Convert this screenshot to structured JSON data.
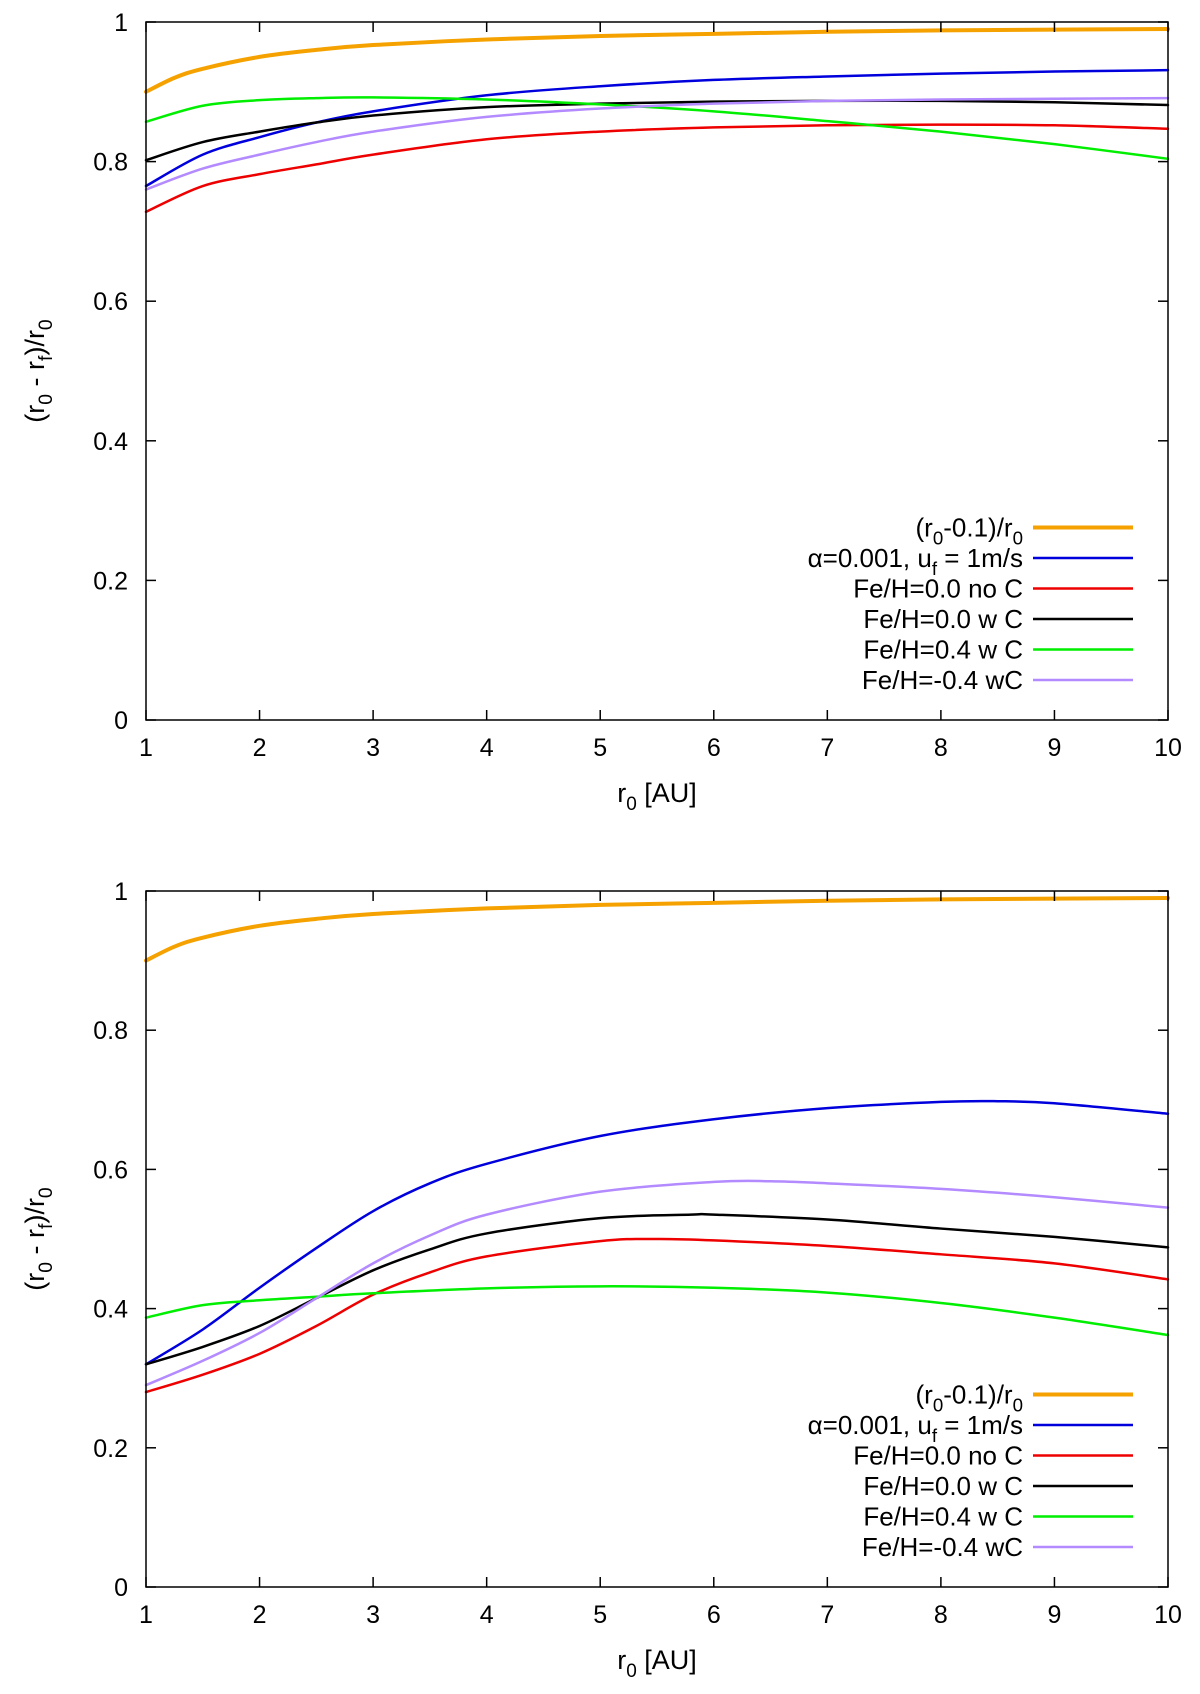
{
  "chart_data": [
    {
      "type": "line",
      "title": "",
      "xlabel": {
        "base": "r",
        "sub": "0",
        "rest": " [AU]"
      },
      "ylabel": {
        "parts": [
          {
            "t": "(r"
          },
          {
            "t": "0",
            "sub": true
          },
          {
            "t": " - r"
          },
          {
            "t": "f",
            "sub": true
          },
          {
            "t": ")/r"
          },
          {
            "t": "0",
            "sub": true
          }
        ]
      },
      "xlim": [
        1,
        10
      ],
      "ylim": [
        0,
        1
      ],
      "x_ticks": [
        "1",
        "2",
        "3",
        "4",
        "5",
        "6",
        "7",
        "8",
        "9",
        "10"
      ],
      "y_ticks": [
        "0",
        "0.2",
        "0.4",
        "0.6",
        "0.8",
        "1"
      ],
      "grid": false,
      "legend_position": "bottom-right",
      "series": [
        {
          "name": "(r0-0.1)/r0",
          "label_parts": [
            {
              "t": "(r"
            },
            {
              "t": "0",
              "sub": true
            },
            {
              "t": "-0.1)/r"
            },
            {
              "t": "0",
              "sub": true
            }
          ],
          "color": "#f5a200",
          "width": 4,
          "x": [
            1,
            1.25,
            1.5,
            2,
            2.5,
            3,
            4,
            5,
            6,
            7,
            8,
            9,
            10
          ],
          "y": [
            0.9,
            0.92,
            0.933,
            0.95,
            0.96,
            0.967,
            0.975,
            0.98,
            0.983,
            0.986,
            0.988,
            0.989,
            0.99
          ]
        },
        {
          "name": "α=0.001, uf = 1m/s",
          "label_parts": [
            {
              "t": "α=0.001, u"
            },
            {
              "t": "f",
              "sub": true
            },
            {
              "t": " = 1m/s"
            }
          ],
          "color": "#0000dd",
          "width": 2.5,
          "x": [
            1,
            1.5,
            2,
            2.5,
            3,
            4,
            5,
            6,
            7,
            8,
            9,
            10
          ],
          "y": [
            0.765,
            0.81,
            0.835,
            0.856,
            0.872,
            0.895,
            0.908,
            0.917,
            0.922,
            0.926,
            0.929,
            0.931
          ]
        },
        {
          "name": "Fe/H=0.0 no C",
          "label_parts": [
            {
              "t": "Fe/H=0.0 no C"
            }
          ],
          "color": "#ee0000",
          "width": 2.5,
          "x": [
            1,
            1.5,
            2,
            2.5,
            3,
            4,
            5,
            6,
            7,
            8,
            9,
            10
          ],
          "y": [
            0.728,
            0.765,
            0.782,
            0.796,
            0.81,
            0.832,
            0.843,
            0.849,
            0.852,
            0.853,
            0.852,
            0.847
          ]
        },
        {
          "name": "Fe/H=0.0 w C",
          "label_parts": [
            {
              "t": "Fe/H=0.0 w C"
            }
          ],
          "color": "#000000",
          "width": 2.5,
          "x": [
            1,
            1.5,
            2,
            2.5,
            3,
            4,
            5,
            6,
            7,
            8,
            9,
            10
          ],
          "y": [
            0.802,
            0.828,
            0.843,
            0.856,
            0.866,
            0.878,
            0.883,
            0.886,
            0.887,
            0.887,
            0.885,
            0.881
          ]
        },
        {
          "name": "Fe/H=0.4 w C",
          "label_parts": [
            {
              "t": "Fe/H=0.4 w C"
            }
          ],
          "color": "#00ee00",
          "width": 2.5,
          "x": [
            1,
            1.5,
            2,
            2.5,
            3,
            4,
            5,
            6,
            7,
            8,
            9,
            10
          ],
          "y": [
            0.857,
            0.88,
            0.888,
            0.891,
            0.892,
            0.889,
            0.882,
            0.872,
            0.858,
            0.843,
            0.825,
            0.804
          ]
        },
        {
          "name": "Fe/H=-0.4 wC",
          "label_parts": [
            {
              "t": "Fe/H=-0.4 wC"
            }
          ],
          "color": "#b38aff",
          "width": 2.5,
          "x": [
            1,
            1.5,
            2,
            2.5,
            3,
            4,
            5,
            6,
            7,
            8,
            9,
            10
          ],
          "y": [
            0.76,
            0.79,
            0.81,
            0.828,
            0.843,
            0.864,
            0.876,
            0.883,
            0.887,
            0.889,
            0.89,
            0.891
          ]
        }
      ]
    },
    {
      "type": "line",
      "title": "",
      "xlabel": {
        "base": "r",
        "sub": "0",
        "rest": " [AU]"
      },
      "ylabel": {
        "parts": [
          {
            "t": "(r"
          },
          {
            "t": "0",
            "sub": true
          },
          {
            "t": " - r"
          },
          {
            "t": "f",
            "sub": true
          },
          {
            "t": ")/r"
          },
          {
            "t": "0",
            "sub": true
          }
        ]
      },
      "xlim": [
        1,
        10
      ],
      "ylim": [
        0,
        1
      ],
      "x_ticks": [
        "1",
        "2",
        "3",
        "4",
        "5",
        "6",
        "7",
        "8",
        "9",
        "10"
      ],
      "y_ticks": [
        "0",
        "0.2",
        "0.4",
        "0.6",
        "0.8",
        "1"
      ],
      "grid": false,
      "legend_position": "bottom-right",
      "series": [
        {
          "name": "(r0-0.1)/r0",
          "label_parts": [
            {
              "t": "(r"
            },
            {
              "t": "0",
              "sub": true
            },
            {
              "t": "-0.1)/r"
            },
            {
              "t": "0",
              "sub": true
            }
          ],
          "color": "#f5a200",
          "width": 4,
          "x": [
            1,
            1.25,
            1.5,
            2,
            2.5,
            3,
            4,
            5,
            6,
            7,
            8,
            9,
            10
          ],
          "y": [
            0.9,
            0.92,
            0.933,
            0.95,
            0.96,
            0.967,
            0.975,
            0.98,
            0.983,
            0.986,
            0.988,
            0.989,
            0.99
          ]
        },
        {
          "name": "α=0.001, uf = 1m/s",
          "label_parts": [
            {
              "t": "α=0.001, u"
            },
            {
              "t": "f",
              "sub": true
            },
            {
              "t": " = 1m/s"
            }
          ],
          "color": "#0000dd",
          "width": 2.5,
          "x": [
            1,
            1.5,
            2,
            2.5,
            3,
            3.5,
            4,
            5,
            6,
            7,
            8,
            8.5,
            9,
            10
          ],
          "y": [
            0.32,
            0.37,
            0.43,
            0.487,
            0.54,
            0.58,
            0.608,
            0.648,
            0.672,
            0.688,
            0.697,
            0.698,
            0.695,
            0.68
          ]
        },
        {
          "name": "Fe/H=0.0 no C",
          "label_parts": [
            {
              "t": "Fe/H=0.0 no C"
            }
          ],
          "color": "#ee0000",
          "width": 2.5,
          "x": [
            1,
            1.5,
            2,
            2.5,
            3,
            3.5,
            4,
            5,
            5.5,
            6,
            7,
            8,
            9,
            10
          ],
          "y": [
            0.28,
            0.305,
            0.335,
            0.375,
            0.42,
            0.452,
            0.475,
            0.497,
            0.5,
            0.498,
            0.49,
            0.478,
            0.465,
            0.442
          ]
        },
        {
          "name": "Fe/H=0.0 w C",
          "label_parts": [
            {
              "t": "Fe/H=0.0 w C"
            }
          ],
          "color": "#000000",
          "width": 2.5,
          "x": [
            1,
            1.5,
            2,
            2.5,
            3,
            3.5,
            4,
            5,
            5.8,
            6,
            7,
            8,
            9,
            10
          ],
          "y": [
            0.32,
            0.345,
            0.375,
            0.415,
            0.455,
            0.485,
            0.508,
            0.53,
            0.535,
            0.535,
            0.528,
            0.515,
            0.503,
            0.488
          ]
        },
        {
          "name": "Fe/H=0.4 w C",
          "label_parts": [
            {
              "t": "Fe/H=0.4 w C"
            }
          ],
          "color": "#00ee00",
          "width": 2.5,
          "x": [
            1,
            1.5,
            2,
            2.5,
            3,
            4,
            5,
            6,
            7,
            8,
            9,
            10
          ],
          "y": [
            0.387,
            0.405,
            0.412,
            0.417,
            0.422,
            0.429,
            0.432,
            0.43,
            0.423,
            0.408,
            0.387,
            0.362
          ]
        },
        {
          "name": "Fe/H=-0.4 wC",
          "label_parts": [
            {
              "t": "Fe/H=-0.4 wC"
            }
          ],
          "color": "#b38aff",
          "width": 2.5,
          "x": [
            1,
            1.5,
            2,
            2.5,
            3,
            3.5,
            4,
            5,
            6,
            6.5,
            7,
            8,
            9,
            10
          ],
          "y": [
            0.29,
            0.325,
            0.365,
            0.415,
            0.465,
            0.505,
            0.535,
            0.568,
            0.582,
            0.583,
            0.58,
            0.572,
            0.56,
            0.545
          ]
        }
      ]
    }
  ]
}
